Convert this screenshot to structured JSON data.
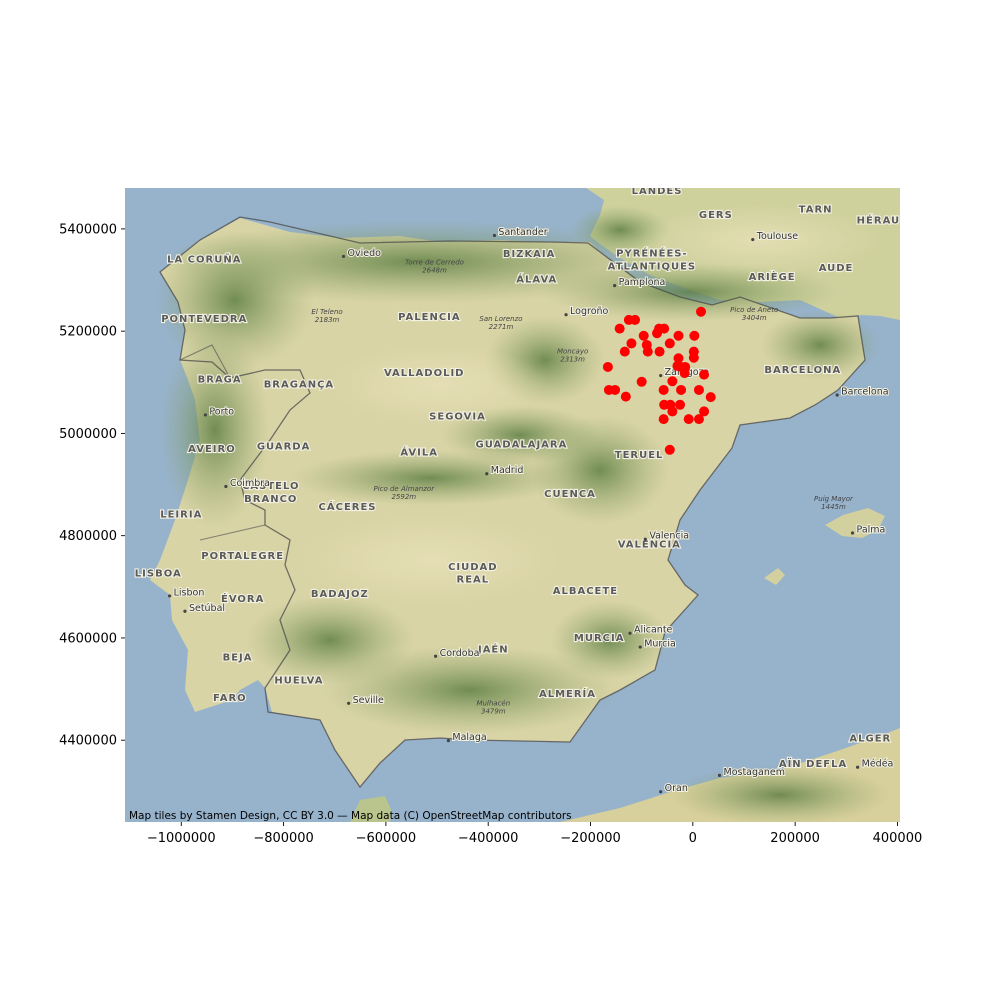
{
  "chart_data": {
    "type": "scatter",
    "basemap": "Stamen Terrain",
    "xlim": [
      -1110000,
      405000
    ],
    "ylim": [
      4240000,
      5480000
    ],
    "x_ticks": [
      -1000000,
      -800000,
      -600000,
      -400000,
      -200000,
      0,
      200000,
      400000
    ],
    "x_tick_labels": [
      "−1000000",
      "−800000",
      "−600000",
      "−400000",
      "−200000",
      "0",
      "200000",
      "400000"
    ],
    "y_ticks": [
      4400000,
      4600000,
      4800000,
      5000000,
      5200000,
      5400000
    ],
    "y_tick_labels": [
      "4400000",
      "4600000",
      "4800000",
      "5000000",
      "5200000",
      "5400000"
    ],
    "grid": false,
    "marker_color": "#ff0000",
    "attribution": "Map tiles by Stamen Design, CC BY 3.0 — Map data (C) OpenStreetMap contributors",
    "points": [
      {
        "x": 16000,
        "y": 5238000
      },
      {
        "x": -143000,
        "y": 5205000
      },
      {
        "x": -125000,
        "y": 5222000
      },
      {
        "x": -113000,
        "y": 5222000
      },
      {
        "x": -66000,
        "y": 5205000
      },
      {
        "x": -56000,
        "y": 5205000
      },
      {
        "x": -70000,
        "y": 5196000
      },
      {
        "x": -96000,
        "y": 5191000
      },
      {
        "x": -28000,
        "y": 5191000
      },
      {
        "x": 3000,
        "y": 5191000
      },
      {
        "x": -120000,
        "y": 5176000
      },
      {
        "x": -90000,
        "y": 5173000
      },
      {
        "x": -45000,
        "y": 5176000
      },
      {
        "x": -133000,
        "y": 5160000
      },
      {
        "x": -88000,
        "y": 5160000
      },
      {
        "x": -65000,
        "y": 5160000
      },
      {
        "x": 2000,
        "y": 5160000
      },
      {
        "x": 2000,
        "y": 5148000
      },
      {
        "x": -28000,
        "y": 5147000
      },
      {
        "x": -30000,
        "y": 5132000
      },
      {
        "x": -23000,
        "y": 5130000
      },
      {
        "x": -15000,
        "y": 5130000
      },
      {
        "x": -16000,
        "y": 5118000
      },
      {
        "x": -166000,
        "y": 5130000
      },
      {
        "x": 22000,
        "y": 5115000
      },
      {
        "x": -100000,
        "y": 5101000
      },
      {
        "x": -40000,
        "y": 5102000
      },
      {
        "x": -164000,
        "y": 5085000
      },
      {
        "x": -152000,
        "y": 5085000
      },
      {
        "x": -57000,
        "y": 5085000
      },
      {
        "x": -23000,
        "y": 5085000
      },
      {
        "x": 12000,
        "y": 5085000
      },
      {
        "x": -131000,
        "y": 5072000
      },
      {
        "x": 35000,
        "y": 5071000
      },
      {
        "x": -56000,
        "y": 5056000
      },
      {
        "x": -44000,
        "y": 5056000
      },
      {
        "x": -25000,
        "y": 5056000
      },
      {
        "x": -40000,
        "y": 5043000
      },
      {
        "x": 22000,
        "y": 5043000
      },
      {
        "x": -57000,
        "y": 5028000
      },
      {
        "x": -8000,
        "y": 5028000
      },
      {
        "x": 12000,
        "y": 5028000
      },
      {
        "x": -45000,
        "y": 4968000
      }
    ]
  },
  "map": {
    "attribution_text": "Map tiles by Stamen Design, CC BY 3.0 — Map data (C) OpenStreetMap contributors",
    "regions": [
      {
        "id": "landes",
        "text": "LANDES",
        "x": -70000,
        "y": 5468000
      },
      {
        "id": "gers",
        "text": "GERS",
        "x": 45000,
        "y": 5421000
      },
      {
        "id": "tarn",
        "text": "TARN",
        "x": 240000,
        "y": 5432000
      },
      {
        "id": "herault",
        "text": "HÉRAUL",
        "x": 370000,
        "y": 5411000
      },
      {
        "id": "pyrenees-atl-1",
        "text": "PYRÉNÉES-",
        "x": -80000,
        "y": 5346000
      },
      {
        "id": "pyrenees-atl-2",
        "text": "ATLANTIQUES",
        "x": -80000,
        "y": 5321000
      },
      {
        "id": "ariege",
        "text": "ARIÈGE",
        "x": 155000,
        "y": 5300000
      },
      {
        "id": "aude",
        "text": "AUDE",
        "x": 280000,
        "y": 5318000
      },
      {
        "id": "bizkaia",
        "text": "BIZKAIA",
        "x": -320000,
        "y": 5345000
      },
      {
        "id": "alava",
        "text": "ÁLAVA",
        "x": -305000,
        "y": 5295000
      },
      {
        "id": "la-coruna",
        "text": "LA CORUÑA",
        "x": -955000,
        "y": 5334000
      },
      {
        "id": "pontevedra",
        "text": "PONTEVEDRA",
        "x": -955000,
        "y": 5218000
      },
      {
        "id": "palencia",
        "text": "PALENCIA",
        "x": -515000,
        "y": 5222000
      },
      {
        "id": "valladolid",
        "text": "VALLADOLID",
        "x": -525000,
        "y": 5112000
      },
      {
        "id": "braga",
        "text": "BRAGA",
        "x": -925000,
        "y": 5100000
      },
      {
        "id": "braganca",
        "text": "BRAGANÇA",
        "x": -770000,
        "y": 5090000
      },
      {
        "id": "segovia",
        "text": "SEGOVIA",
        "x": -460000,
        "y": 5027000
      },
      {
        "id": "aveiro",
        "text": "AVEIRO",
        "x": -940000,
        "y": 4964000
      },
      {
        "id": "guarda",
        "text": "GUARDA",
        "x": -800000,
        "y": 4969000
      },
      {
        "id": "avila",
        "text": "ÁVILA",
        "x": -535000,
        "y": 4957000
      },
      {
        "id": "guadalajara",
        "text": "GUADALAJARA",
        "x": -335000,
        "y": 4972000
      },
      {
        "id": "teruel",
        "text": "TERUEL",
        "x": -105000,
        "y": 4952000
      },
      {
        "id": "castelo-branco-1",
        "text": "CASTELO",
        "x": -825000,
        "y": 4891000
      },
      {
        "id": "castelo-branco-2",
        "text": "BRANCO",
        "x": -825000,
        "y": 4866000
      },
      {
        "id": "caceres",
        "text": "CÁCERES",
        "x": -675000,
        "y": 4850000
      },
      {
        "id": "cuenca",
        "text": "CUENCA",
        "x": -240000,
        "y": 4876000
      },
      {
        "id": "leiria",
        "text": "LEIRIA",
        "x": -1000000,
        "y": 4836000
      },
      {
        "id": "valencia-region",
        "text": "VALENCIA",
        "x": -85000,
        "y": 4777000
      },
      {
        "id": "portalegre",
        "text": "PORTALEGRE",
        "x": -880000,
        "y": 4754000
      },
      {
        "id": "ciudad-real-1",
        "text": "CIUDAD",
        "x": -430000,
        "y": 4733000
      },
      {
        "id": "ciudad-real-2",
        "text": "REAL",
        "x": -430000,
        "y": 4708000
      },
      {
        "id": "lisboa",
        "text": "LISBOA",
        "x": -1045000,
        "y": 4720000
      },
      {
        "id": "badajoz",
        "text": "BADAJOZ",
        "x": -690000,
        "y": 4680000
      },
      {
        "id": "evora",
        "text": "ÉVORA",
        "x": -880000,
        "y": 4670000
      },
      {
        "id": "albacete",
        "text": "ALBACETE",
        "x": -210000,
        "y": 4686000
      },
      {
        "id": "murcia-region",
        "text": "MURCIA",
        "x": -183000,
        "y": 4594000
      },
      {
        "id": "jaen",
        "text": "JAÉN",
        "x": -390000,
        "y": 4572000
      },
      {
        "id": "beja",
        "text": "BEJA",
        "x": -890000,
        "y": 4556000
      },
      {
        "id": "huelva",
        "text": "HUELVA",
        "x": -770000,
        "y": 4511000
      },
      {
        "id": "faro",
        "text": "FARO",
        "x": -905000,
        "y": 4477000
      },
      {
        "id": "almeria",
        "text": "ALMERÍA",
        "x": -245000,
        "y": 4484000
      },
      {
        "id": "barcelona-region",
        "text": "BARCELONA",
        "x": 215000,
        "y": 5118000
      },
      {
        "id": "alger",
        "text": "ALGER",
        "x": 347000,
        "y": 4397000
      },
      {
        "id": "ain-defla",
        "text": "AÏN DEFLA",
        "x": 235000,
        "y": 4348000
      }
    ],
    "cities": [
      {
        "id": "santander",
        "text": "Santander",
        "x": -380000,
        "y": 5395000
      },
      {
        "id": "oviedo",
        "text": "Oviedo",
        "x": -675000,
        "y": 5354000
      },
      {
        "id": "toulouse",
        "text": "Toulouse",
        "x": 125000,
        "y": 5387000
      },
      {
        "id": "pamplona",
        "text": "Pamplona",
        "x": -145000,
        "y": 5297000
      },
      {
        "id": "logrono",
        "text": "Logroño",
        "x": -240000,
        "y": 5240000
      },
      {
        "id": "zaragoza",
        "text": "Zaragoza",
        "x": -55000,
        "y": 5121000
      },
      {
        "id": "barcelona",
        "text": "Barcelona",
        "x": 290000,
        "y": 5083000
      },
      {
        "id": "porto",
        "text": "Porto",
        "x": -945000,
        "y": 5044000
      },
      {
        "id": "madrid",
        "text": "Madrid",
        "x": -395000,
        "y": 4929000
      },
      {
        "id": "coimbra",
        "text": "Coimbra",
        "x": -905000,
        "y": 4904000
      },
      {
        "id": "valencia",
        "text": "Valencia",
        "x": -85000,
        "y": 4801000
      },
      {
        "id": "palma",
        "text": "Palma",
        "x": 320000,
        "y": 4813000
      },
      {
        "id": "lisbon",
        "text": "Lisbon",
        "x": -1015000,
        "y": 4690000
      },
      {
        "id": "setubal",
        "text": "Setúbal",
        "x": -985000,
        "y": 4660000
      },
      {
        "id": "alicante",
        "text": "Alicante",
        "x": -115000,
        "y": 4617000
      },
      {
        "id": "murcia",
        "text": "Murcia",
        "x": -95000,
        "y": 4590000
      },
      {
        "id": "cordoba",
        "text": "Cordoba",
        "x": -495000,
        "y": 4572000
      },
      {
        "id": "seville",
        "text": "Seville",
        "x": -665000,
        "y": 4480000
      },
      {
        "id": "malaga",
        "text": "Malaga",
        "x": -470000,
        "y": 4407000
      },
      {
        "id": "medea",
        "text": "Médéa",
        "x": 330000,
        "y": 4355000
      },
      {
        "id": "mostaganem",
        "text": "Mostaganem",
        "x": 60000,
        "y": 4339000
      },
      {
        "id": "oran",
        "text": "Oran",
        "x": -55000,
        "y": 4307000
      }
    ],
    "peaks": [
      {
        "id": "torre-de-cerredo",
        "line1": "Torre de Cerredo",
        "line2": "2648m",
        "x": -505000,
        "y": 5330000
      },
      {
        "id": "el-teleno",
        "line1": "El Teleno",
        "line2": "2183m",
        "x": -715000,
        "y": 5234000
      },
      {
        "id": "san-lorenzo",
        "line1": "San Lorenzo",
        "line2": "2271m",
        "x": -375000,
        "y": 5220000
      },
      {
        "id": "moncayo",
        "line1": "Moncayo",
        "line2": "2313m",
        "x": -235000,
        "y": 5156000
      },
      {
        "id": "pico-de-aneto",
        "line1": "Pico de Aneto",
        "line2": "3404m",
        "x": 120000,
        "y": 5237000
      },
      {
        "id": "pico-de-almanzor",
        "line1": "Pico de Almanzor",
        "line2": "2592m",
        "x": -565000,
        "y": 4887000
      },
      {
        "id": "puig-mayor",
        "line1": "Puig Mayor",
        "line2": "1445m",
        "x": 275000,
        "y": 4868000
      },
      {
        "id": "mulhacen",
        "line1": "Mulhacén",
        "line2": "3479m",
        "x": -390000,
        "y": 4468000
      }
    ]
  }
}
